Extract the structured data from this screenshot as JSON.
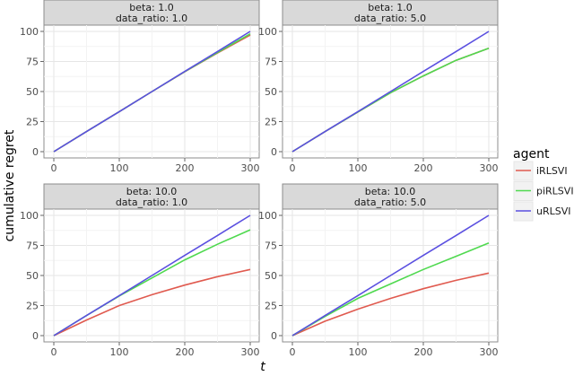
{
  "chart_data": {
    "type": "line",
    "xlabel": "t",
    "ylabel": "cumulative regret",
    "xlim": [
      0,
      300
    ],
    "ylim": [
      0,
      100
    ],
    "x_ticks": [
      "0",
      "100",
      "200",
      "300"
    ],
    "y_ticks": [
      "0",
      "25",
      "50",
      "75",
      "100"
    ],
    "grid": true,
    "legend": {
      "title": "agent",
      "placement": "right"
    },
    "x": [
      0,
      50,
      100,
      150,
      200,
      250,
      300
    ],
    "colors": {
      "iRLSVI": "#e05a4f",
      "piRLSVI": "#4fd94f",
      "uRLSVI": "#5a4fe0"
    },
    "panels": [
      {
        "strip": [
          "beta: 1.0",
          "data_ratio: 1.0"
        ],
        "series": [
          {
            "name": "iRLSVI",
            "values": [
              0,
              16.7,
              33.3,
              50,
              66.5,
              82,
              97
            ]
          },
          {
            "name": "piRLSVI",
            "values": [
              0,
              16.7,
              33.3,
              50,
              66.6,
              82.5,
              98
            ]
          },
          {
            "name": "uRLSVI",
            "values": [
              0,
              16.7,
              33.3,
              50,
              66.7,
              83.3,
              100
            ]
          }
        ]
      },
      {
        "strip": [
          "beta: 1.0",
          "data_ratio: 5.0"
        ],
        "series": [
          {
            "name": "iRLSVI",
            "values": [
              0,
              16.7,
              33,
              49,
              63,
              76,
              86
            ]
          },
          {
            "name": "piRLSVI",
            "values": [
              0,
              16.7,
              33,
              49,
              63,
              76,
              86
            ]
          },
          {
            "name": "uRLSVI",
            "values": [
              0,
              16.7,
              33.3,
              50,
              66.7,
              83.3,
              100
            ]
          }
        ]
      },
      {
        "strip": [
          "beta: 10.0",
          "data_ratio: 1.0"
        ],
        "series": [
          {
            "name": "iRLSVI",
            "values": [
              0,
              13,
              25,
              34,
              42,
              49,
              55
            ]
          },
          {
            "name": "piRLSVI",
            "values": [
              0,
              16.7,
              33,
              48,
              63,
              76,
              88
            ]
          },
          {
            "name": "uRLSVI",
            "values": [
              0,
              16.7,
              33.3,
              50,
              66.7,
              83.3,
              100
            ]
          }
        ]
      },
      {
        "strip": [
          "beta: 10.0",
          "data_ratio: 5.0"
        ],
        "series": [
          {
            "name": "iRLSVI",
            "values": [
              0,
              12,
              22,
              31,
              39,
              46,
              52
            ]
          },
          {
            "name": "piRLSVI",
            "values": [
              0,
              16,
              31,
              43,
              55,
              66,
              77
            ]
          },
          {
            "name": "uRLSVI",
            "values": [
              0,
              16.7,
              33.3,
              50,
              66.7,
              83.3,
              100
            ]
          }
        ]
      }
    ]
  }
}
